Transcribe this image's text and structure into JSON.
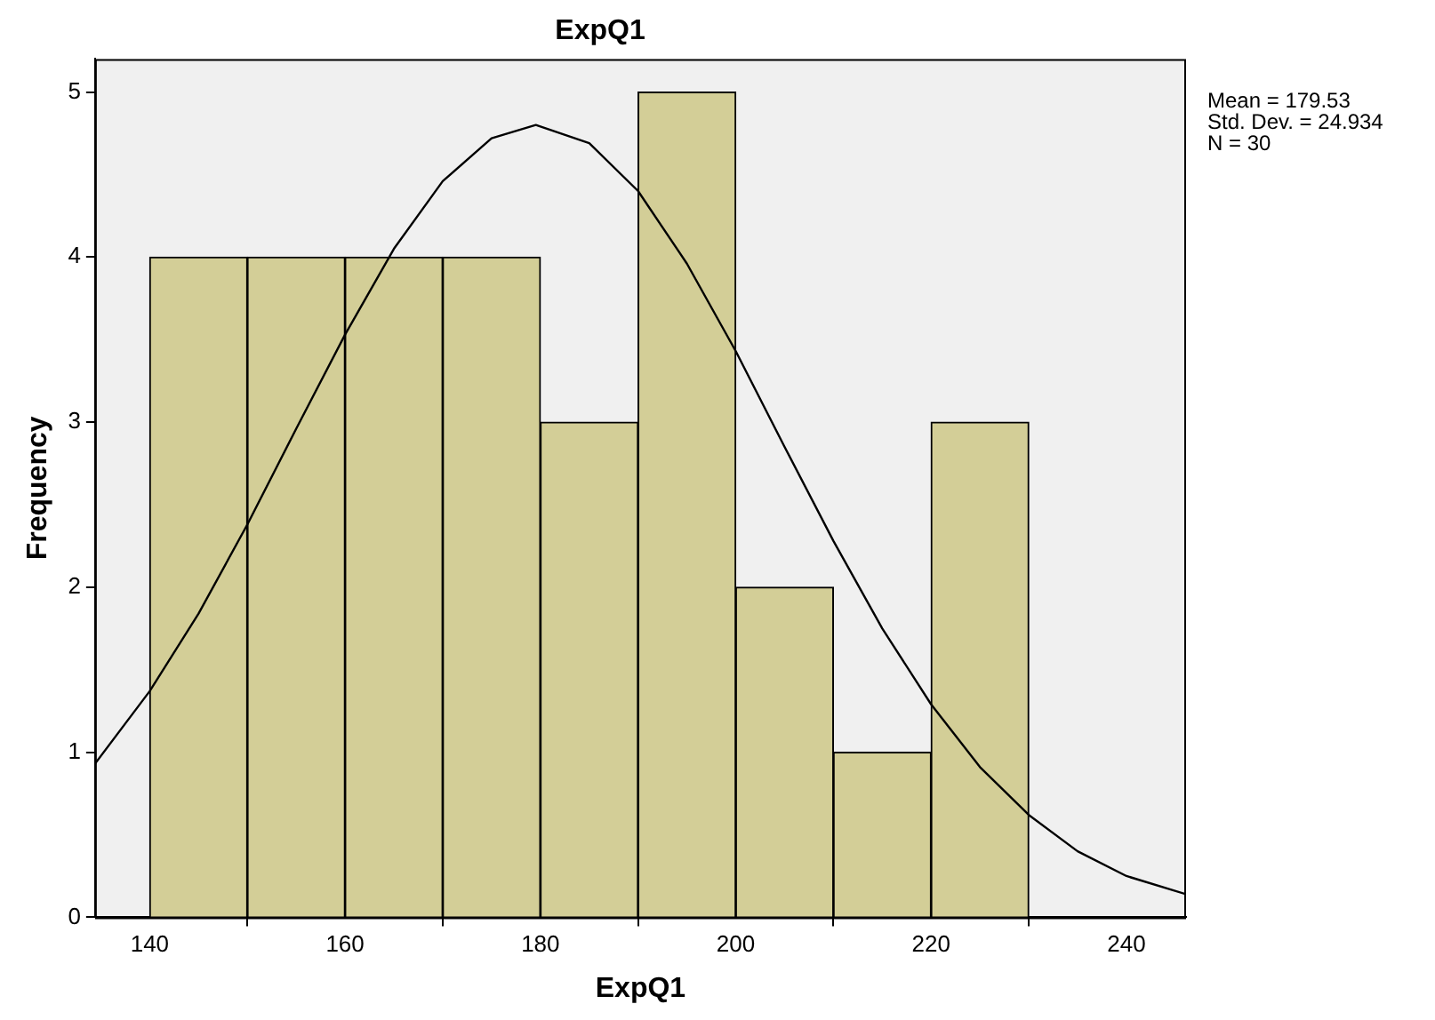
{
  "chart_data": {
    "type": "histogram",
    "title": "ExpQ1",
    "xlabel": "ExpQ1",
    "ylabel": "Frequency",
    "bins": [
      140,
      150,
      160,
      170,
      180,
      190,
      200,
      210,
      220,
      230
    ],
    "values": [
      4,
      4,
      4,
      4,
      3,
      5,
      2,
      1,
      3
    ],
    "color": "#d3ce97",
    "series": [
      {
        "type": "line",
        "color": "#000000",
        "x": [
          134.4,
          140,
          145,
          150,
          155,
          160,
          165,
          170,
          175,
          179.53,
          185,
          190,
          195,
          200,
          205,
          210,
          215,
          220,
          225,
          230,
          235,
          240,
          246.1
        ],
        "values": [
          0.93,
          1.37,
          1.84,
          2.38,
          2.96,
          3.53,
          4.05,
          4.46,
          4.72,
          4.8,
          4.69,
          4.4,
          3.96,
          3.43,
          2.85,
          2.28,
          1.75,
          1.29,
          0.91,
          0.62,
          0.4,
          0.25,
          0.14
        ]
      }
    ],
    "xlim": [
      134.4,
      246.1
    ],
    "xticks": [
      140,
      160,
      180,
      200,
      220,
      240
    ],
    "ylim": [
      0,
      5.2
    ],
    "yticks": [
      0,
      1,
      2,
      3,
      4,
      5
    ],
    "grid": false,
    "legend": false,
    "marker": "none",
    "line_style": "solid",
    "annotations": [
      "Mean = 179.53",
      "Std. Dev. = 24.934",
      "N = 30"
    ]
  }
}
